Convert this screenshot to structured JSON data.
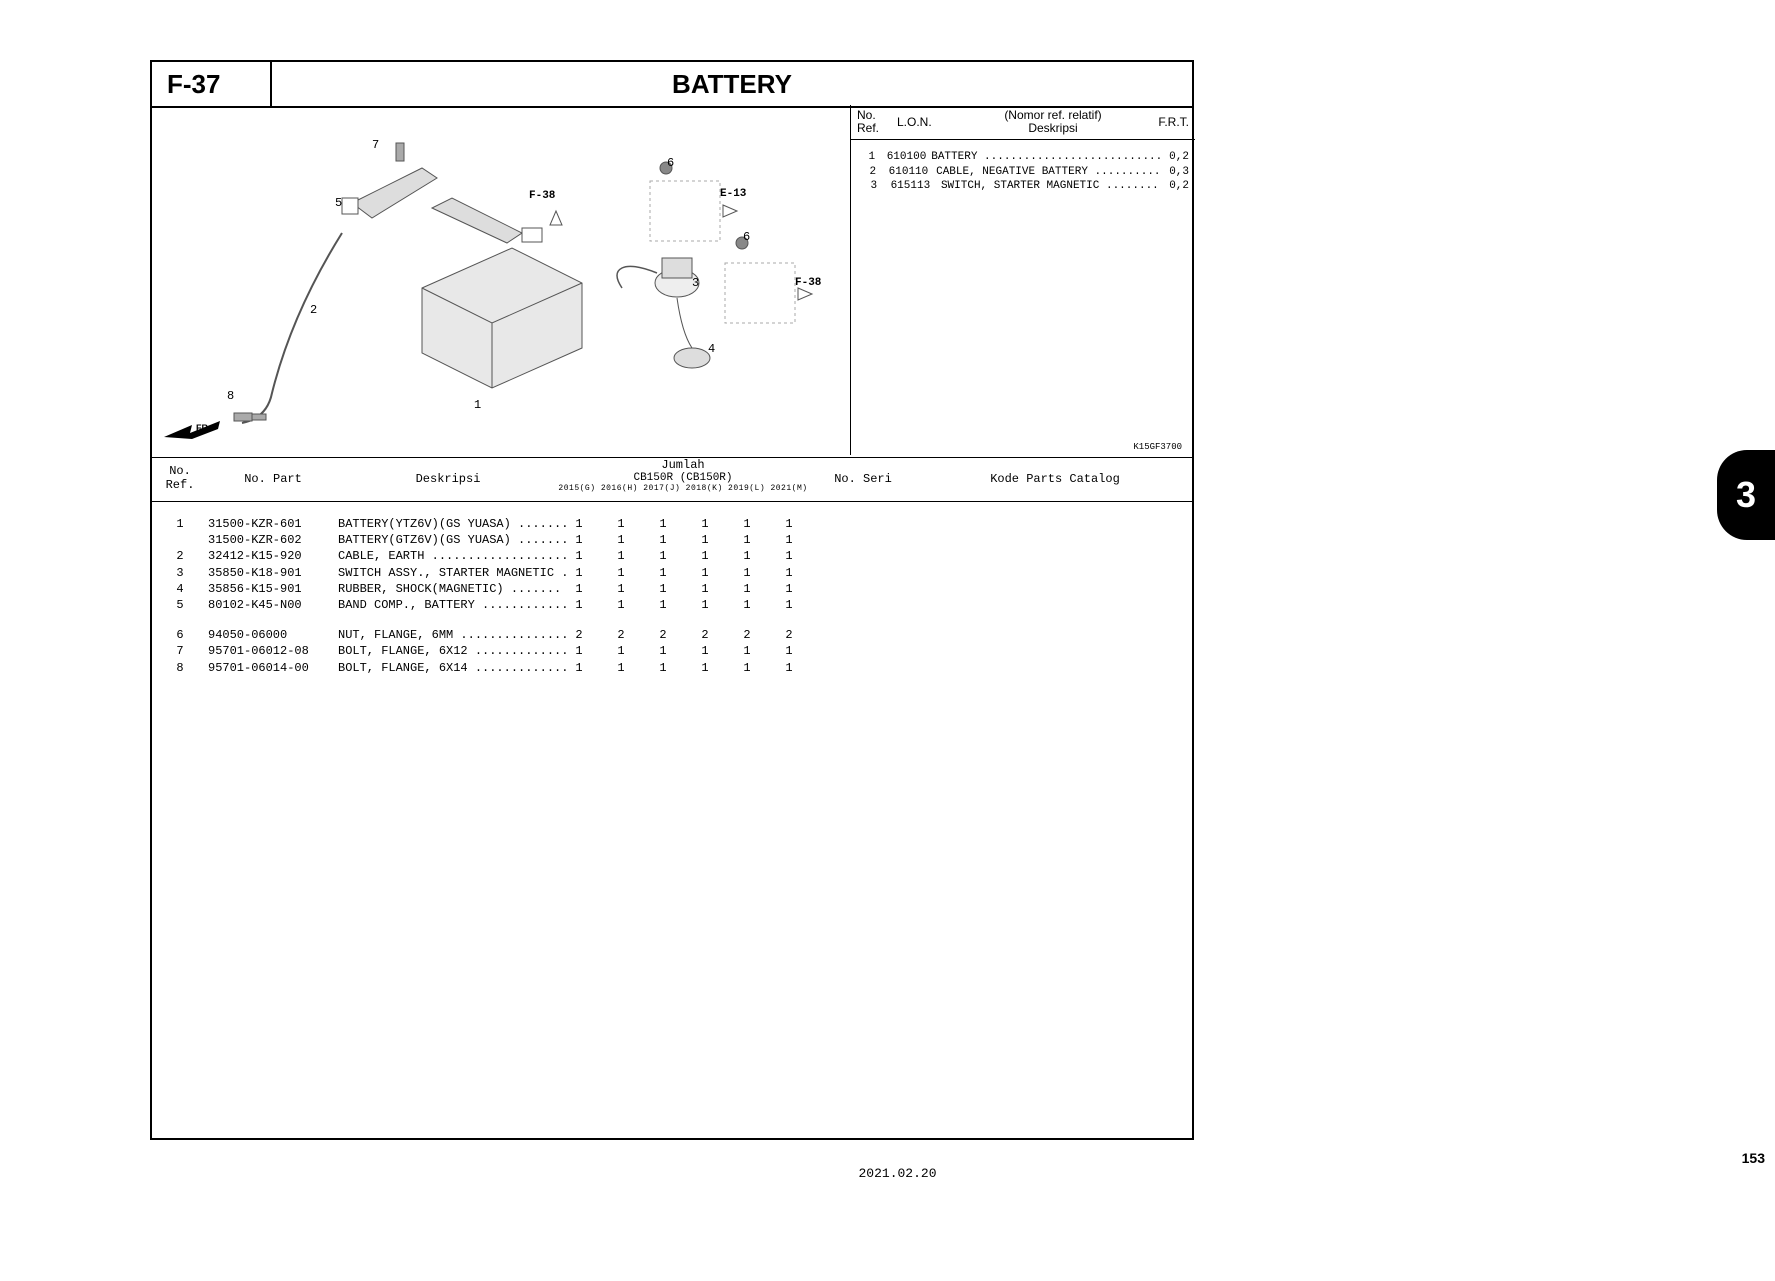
{
  "page_code": "F-37",
  "page_title": "BATTERY",
  "diagram_code": "K15GF3700",
  "diagram": {
    "callouts": [
      "1",
      "2",
      "3",
      "4",
      "5",
      "6",
      "7",
      "8"
    ],
    "refs": [
      "F-38",
      "E-13",
      "F-38"
    ],
    "fr_label": "FR."
  },
  "parts_table": {
    "headers": {
      "ref": "No.\nRef.",
      "part": "No. Part",
      "desc": "Deskripsi",
      "jumlah": "Jumlah",
      "model": "CB150R (CB150R)",
      "years": "2015(G) 2016(H) 2017(J) 2018(K) 2019(L) 2021(M)",
      "seri": "No. Seri",
      "kode": "Kode Parts Catalog"
    },
    "rows": [
      {
        "ref": "1",
        "part": "31500-KZR-601",
        "desc": "BATTERY(YTZ6V)(GS YUASA) .......",
        "q": [
          "1",
          "1",
          "1",
          "1",
          "1",
          "1"
        ]
      },
      {
        "ref": "",
        "part": "31500-KZR-602",
        "desc": "BATTERY(GTZ6V)(GS YUASA) .......",
        "q": [
          "1",
          "1",
          "1",
          "1",
          "1",
          "1"
        ]
      },
      {
        "ref": "2",
        "part": "32412-K15-920",
        "desc": "CABLE, EARTH ...................",
        "q": [
          "1",
          "1",
          "1",
          "1",
          "1",
          "1"
        ]
      },
      {
        "ref": "3",
        "part": "35850-K18-901",
        "desc": "SWITCH ASSY., STARTER MAGNETIC .",
        "q": [
          "1",
          "1",
          "1",
          "1",
          "1",
          "1"
        ]
      },
      {
        "ref": "4",
        "part": "35856-K15-901",
        "desc": "RUBBER, SHOCK(MAGNETIC) .......",
        "q": [
          "1",
          "1",
          "1",
          "1",
          "1",
          "1"
        ]
      },
      {
        "ref": "5",
        "part": "80102-K45-N00",
        "desc": "BAND COMP., BATTERY ............",
        "q": [
          "1",
          "1",
          "1",
          "1",
          "1",
          "1"
        ]
      }
    ],
    "rows2": [
      {
        "ref": "6",
        "part": "94050-06000",
        "desc": "NUT, FLANGE, 6MM ...............",
        "q": [
          "2",
          "2",
          "2",
          "2",
          "2",
          "2"
        ]
      },
      {
        "ref": "7",
        "part": "95701-06012-08",
        "desc": "BOLT, FLANGE, 6X12 .............",
        "q": [
          "1",
          "1",
          "1",
          "1",
          "1",
          "1"
        ]
      },
      {
        "ref": "8",
        "part": "95701-06014-00",
        "desc": "BOLT, FLANGE, 6X14 .............",
        "q": [
          "1",
          "1",
          "1",
          "1",
          "1",
          "1"
        ]
      }
    ]
  },
  "side_table": {
    "headers": {
      "ref": "No.\nRef.",
      "lon": "L.O.N.",
      "desc_top": "(Nomor ref. relatif)",
      "desc_bot": "Deskripsi",
      "frt": "F.R.T."
    },
    "rows": [
      {
        "ref": "1",
        "lon": "610100",
        "desc": "BATTERY ...........................",
        "frt": "0,2"
      },
      {
        "ref": "2",
        "lon": "610110",
        "desc": "CABLE, NEGATIVE BATTERY ..........",
        "frt": "0,3"
      },
      {
        "ref": "3",
        "lon": "615113",
        "desc": "SWITCH, STARTER MAGNETIC ........",
        "frt": "0,2"
      }
    ]
  },
  "tab_number": "3",
  "page_number": "153",
  "footer_date": "2021.02.20"
}
